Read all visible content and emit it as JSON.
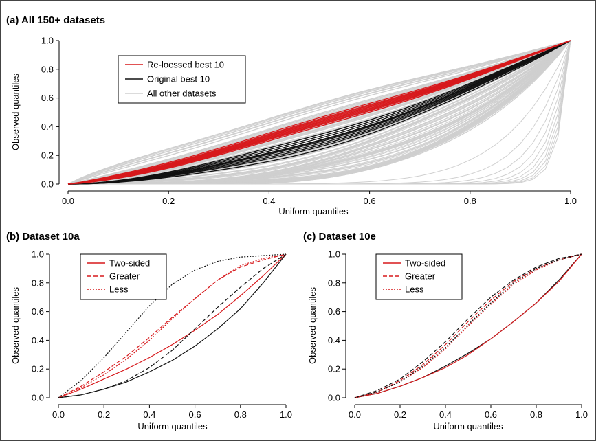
{
  "colors": {
    "red": "#d7191c",
    "black": "#111111",
    "gray": "#cfcfcf"
  },
  "chart_data": [
    {
      "type": "line",
      "panel": "a",
      "title": "(a) All 150+ datasets",
      "xlabel": "Uniform quantiles",
      "ylabel": "Observed quantiles",
      "xlim": [
        0,
        1
      ],
      "ylim": [
        0,
        1
      ],
      "xticks": [
        "0.0",
        "0.2",
        "0.4",
        "0.6",
        "0.8",
        "1.0"
      ],
      "yticks": [
        "0.0",
        "0.2",
        "0.4",
        "0.6",
        "0.8",
        "1.0"
      ],
      "grid": false,
      "legend_position": "top-left",
      "legend": [
        {
          "label": "Re-loessed best 10",
          "color": "#d7191c",
          "dash": "solid"
        },
        {
          "label": "Original best 10",
          "color": "#111111",
          "dash": "solid"
        },
        {
          "label": "All other datasets",
          "color": "#cfcfcf",
          "dash": "solid"
        }
      ],
      "series_groups": [
        {
          "legend_index": 2,
          "color": "#cfcfcf",
          "count": 150,
          "shape_exponents_range": [
            0.85,
            4.5
          ],
          "steep_tail_count": 10
        },
        {
          "legend_index": 1,
          "color": "#111111",
          "count": 10,
          "shape_exponents": [
            1.55,
            1.6,
            1.65,
            1.7,
            1.72,
            1.75,
            1.8,
            1.85,
            1.9,
            2.0
          ]
        },
        {
          "legend_index": 0,
          "color": "#d7191c",
          "count": 10,
          "shape_exponents": [
            1.15,
            1.18,
            1.2,
            1.22,
            1.24,
            1.26,
            1.28,
            1.3,
            1.32,
            1.35
          ]
        }
      ]
    },
    {
      "type": "line",
      "panel": "b",
      "title": "(b) Dataset 10a",
      "xlabel": "Uniform quantiles",
      "ylabel": "Observed quantiles",
      "xlim": [
        0,
        1
      ],
      "ylim": [
        0,
        1
      ],
      "xticks": [
        "0.0",
        "0.2",
        "0.4",
        "0.6",
        "0.8",
        "1.0"
      ],
      "yticks": [
        "0.0",
        "0.2",
        "0.4",
        "0.6",
        "0.8",
        "1.0"
      ],
      "grid": false,
      "legend_position": "top-left",
      "legend": [
        {
          "label": "Two-sided",
          "color": "#d7191c",
          "dash": "solid"
        },
        {
          "label": "Greater",
          "color": "#d7191c",
          "dash": "dashed"
        },
        {
          "label": "Less",
          "color": "#d7191c",
          "dotted": true,
          "dash": "dotted"
        }
      ],
      "series": [
        {
          "color": "#111111",
          "dash": "solid",
          "x": [
            0,
            0.1,
            0.2,
            0.3,
            0.4,
            0.5,
            0.6,
            0.7,
            0.8,
            0.9,
            1.0
          ],
          "y": [
            0,
            0.02,
            0.06,
            0.11,
            0.18,
            0.26,
            0.36,
            0.48,
            0.62,
            0.8,
            1.0
          ]
        },
        {
          "color": "#d7191c",
          "dash": "solid",
          "x": [
            0,
            0.1,
            0.2,
            0.3,
            0.4,
            0.5,
            0.6,
            0.7,
            0.8,
            0.9,
            1.0
          ],
          "y": [
            0,
            0.06,
            0.13,
            0.2,
            0.28,
            0.37,
            0.47,
            0.58,
            0.71,
            0.85,
            1.0
          ]
        },
        {
          "color": "#111111",
          "dash": "dashed",
          "x": [
            0,
            0.1,
            0.2,
            0.3,
            0.4,
            0.5,
            0.6,
            0.7,
            0.8,
            0.9,
            1.0
          ],
          "y": [
            0,
            0.02,
            0.06,
            0.12,
            0.21,
            0.33,
            0.48,
            0.63,
            0.77,
            0.9,
            1.0
          ]
        },
        {
          "color": "#d7191c",
          "dash": "dashed",
          "x": [
            0,
            0.1,
            0.2,
            0.3,
            0.4,
            0.5,
            0.6,
            0.7,
            0.8,
            0.9,
            1.0
          ],
          "y": [
            0,
            0.08,
            0.18,
            0.29,
            0.42,
            0.56,
            0.69,
            0.82,
            0.91,
            0.96,
            1.0
          ]
        },
        {
          "color": "#d7191c",
          "dash": "dotted",
          "x": [
            0,
            0.1,
            0.2,
            0.3,
            0.4,
            0.5,
            0.6,
            0.7,
            0.8,
            0.9,
            1.0
          ],
          "y": [
            0,
            0.07,
            0.16,
            0.27,
            0.4,
            0.55,
            0.69,
            0.82,
            0.92,
            0.97,
            1.0
          ]
        },
        {
          "color": "#111111",
          "dash": "dotted",
          "x": [
            0,
            0.1,
            0.2,
            0.3,
            0.4,
            0.5,
            0.6,
            0.7,
            0.8,
            0.9,
            1.0
          ],
          "y": [
            0,
            0.12,
            0.28,
            0.46,
            0.64,
            0.79,
            0.89,
            0.95,
            0.98,
            0.99,
            1.0
          ]
        }
      ]
    },
    {
      "type": "line",
      "panel": "c",
      "title": "(c) Dataset 10e",
      "xlabel": "Uniform quantiles",
      "ylabel": "Observed quantiles",
      "xlim": [
        0,
        1
      ],
      "ylim": [
        0,
        1
      ],
      "xticks": [
        "0.0",
        "0.2",
        "0.4",
        "0.6",
        "0.8",
        "1.0"
      ],
      "yticks": [
        "0.0",
        "0.2",
        "0.4",
        "0.6",
        "0.8",
        "1.0"
      ],
      "grid": false,
      "legend_position": "top-left",
      "legend": [
        {
          "label": "Two-sided",
          "color": "#d7191c",
          "dash": "solid"
        },
        {
          "label": "Greater",
          "color": "#d7191c",
          "dash": "dashed"
        },
        {
          "label": "Less",
          "color": "#d7191c",
          "dash": "dotted"
        }
      ],
      "series": [
        {
          "color": "#111111",
          "dash": "solid",
          "x": [
            0,
            0.1,
            0.2,
            0.3,
            0.4,
            0.5,
            0.6,
            0.7,
            0.8,
            0.9,
            1.0
          ],
          "y": [
            0,
            0.03,
            0.08,
            0.14,
            0.22,
            0.31,
            0.41,
            0.53,
            0.66,
            0.82,
            1.0
          ]
        },
        {
          "color": "#d7191c",
          "dash": "solid",
          "x": [
            0,
            0.1,
            0.2,
            0.3,
            0.4,
            0.5,
            0.6,
            0.7,
            0.8,
            0.9,
            1.0
          ],
          "y": [
            0,
            0.03,
            0.08,
            0.14,
            0.21,
            0.3,
            0.41,
            0.53,
            0.66,
            0.81,
            1.0
          ]
        },
        {
          "color": "#111111",
          "dash": "dashed",
          "x": [
            0,
            0.1,
            0.2,
            0.3,
            0.4,
            0.5,
            0.6,
            0.7,
            0.8,
            0.9,
            1.0
          ],
          "y": [
            0,
            0.05,
            0.13,
            0.25,
            0.39,
            0.55,
            0.7,
            0.82,
            0.91,
            0.97,
            1.0
          ]
        },
        {
          "color": "#d7191c",
          "dash": "dashed",
          "x": [
            0,
            0.1,
            0.2,
            0.3,
            0.4,
            0.5,
            0.6,
            0.7,
            0.8,
            0.9,
            1.0
          ],
          "y": [
            0,
            0.04,
            0.12,
            0.23,
            0.37,
            0.53,
            0.68,
            0.81,
            0.9,
            0.96,
            1.0
          ]
        },
        {
          "color": "#d7191c",
          "dash": "dotted",
          "x": [
            0,
            0.1,
            0.2,
            0.3,
            0.4,
            0.5,
            0.6,
            0.7,
            0.8,
            0.9,
            1.0
          ],
          "y": [
            0,
            0.04,
            0.11,
            0.21,
            0.34,
            0.5,
            0.65,
            0.79,
            0.89,
            0.96,
            1.0
          ]
        },
        {
          "color": "#111111",
          "dash": "dotted",
          "x": [
            0,
            0.1,
            0.2,
            0.3,
            0.4,
            0.5,
            0.6,
            0.7,
            0.8,
            0.9,
            1.0
          ],
          "y": [
            0,
            0.04,
            0.11,
            0.22,
            0.35,
            0.51,
            0.66,
            0.8,
            0.9,
            0.96,
            1.0
          ]
        }
      ]
    }
  ]
}
